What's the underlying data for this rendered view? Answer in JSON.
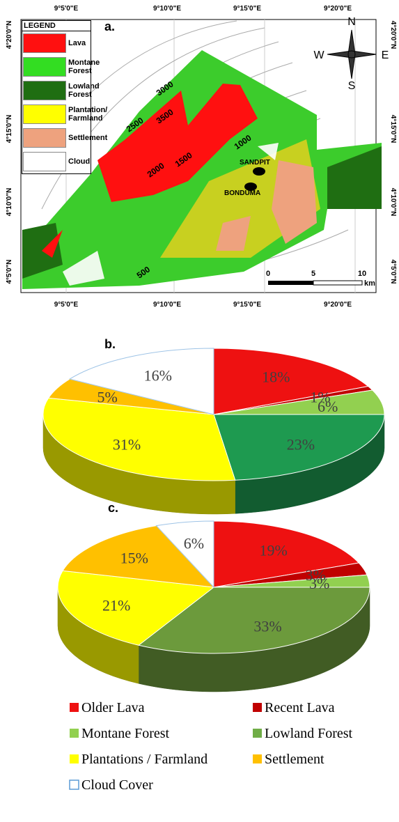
{
  "map": {
    "label": "a.",
    "legend_title": "LEGEND",
    "legend": [
      {
        "name": "Lava",
        "color": "#ff1010"
      },
      {
        "name": "Montane Forest",
        "color": "#33dd22"
      },
      {
        "name": "Lowland Forest",
        "color": "#1f6e12"
      },
      {
        "name": "Plantation/ Farmland",
        "color": "#ffff00"
      },
      {
        "name": "Settlement",
        "color": "#eea27e"
      },
      {
        "name": "Cloud",
        "color": "#ffffff"
      }
    ],
    "x_labels": [
      "9°5'0\"E",
      "9°10'0\"E",
      "9°15'0\"E",
      "9°20'0\"E"
    ],
    "y_labels": [
      "4°20'0\"N",
      "4°15'0\"N",
      "4°10'0\"N",
      "4°5'0\"N"
    ],
    "contours": [
      "3000",
      "3500",
      "2500",
      "2000",
      "1500",
      "1000",
      "500"
    ],
    "places": [
      "SANDPIT",
      "BONDUMA"
    ],
    "compass": [
      "N",
      "S",
      "W",
      "E"
    ],
    "scale": {
      "ticks": [
        "0",
        "5",
        "10"
      ],
      "unit": "km"
    }
  },
  "chart_data": [
    {
      "type": "pie3d",
      "label": "b.",
      "values": [
        18,
        1,
        6,
        23,
        31,
        5,
        16
      ],
      "value_labels": [
        "18%",
        "1%",
        "6%",
        "23%",
        "31%",
        "5%",
        "16%"
      ],
      "colors": [
        "#ee1111",
        "#c00000",
        "#92d050",
        "#1e9a50",
        "#ffff00",
        "#ffc000",
        "#ffffff"
      ]
    },
    {
      "type": "pie3d",
      "label": "c.",
      "values": [
        19,
        3,
        3,
        33,
        21,
        15,
        6
      ],
      "value_labels": [
        "19%",
        "3%",
        "3%",
        "33%",
        "21%",
        "15%",
        "6%"
      ],
      "colors": [
        "#ee1111",
        "#c00000",
        "#92d050",
        "#6c9a3c",
        "#ffff00",
        "#ffc000",
        "#ffffff"
      ]
    }
  ],
  "legend": [
    {
      "name": "Older Lava",
      "color": "#ee1111"
    },
    {
      "name": "Recent Lava",
      "color": "#c00000"
    },
    {
      "name": "Montane Forest",
      "color": "#92d050"
    },
    {
      "name": "Lowland Forest",
      "color": "#70ad47"
    },
    {
      "name": "Plantations / Farmland",
      "color": "#ffff00"
    },
    {
      "name": "Settlement",
      "color": "#ffc000"
    },
    {
      "name": "Cloud Cover",
      "color": "#ffffff"
    }
  ]
}
